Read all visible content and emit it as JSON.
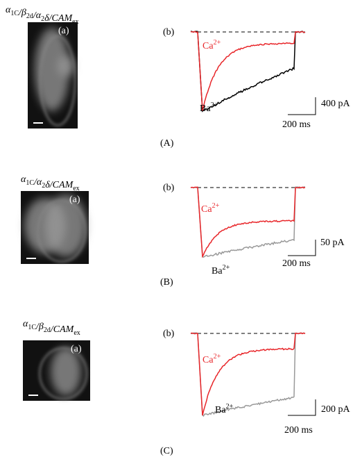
{
  "panels": [
    {
      "construct": [
        {
          "t": "α",
          "sub": "1C"
        },
        {
          "t": "/β",
          "sub": "2d"
        },
        {
          "t": "/α",
          "sub": "2"
        },
        {
          "t": "δ/CAM",
          "sub": "ex"
        }
      ],
      "image_label": "(a)",
      "trace_label": "(b)",
      "ca": {
        "ion": "Ca",
        "charge": "2+"
      },
      "ba": {
        "ion": "Ba",
        "charge": "2+"
      },
      "current_scale": "400 pA",
      "time_scale": "200 ms",
      "panel_label": "(A)"
    },
    {
      "construct": [
        {
          "t": "α",
          "sub": "1C"
        },
        {
          "t": "/α",
          "sub": "2"
        },
        {
          "t": "δ/CAM",
          "sub": "ex"
        }
      ],
      "image_label": "(a)",
      "trace_label": "(b)",
      "ca": {
        "ion": "Ca",
        "charge": "2+"
      },
      "ba": {
        "ion": "Ba",
        "charge": "2+"
      },
      "current_scale": "50 pA",
      "time_scale": "200 ms",
      "panel_label": "(B)"
    },
    {
      "construct": [
        {
          "t": "α",
          "sub": "1C"
        },
        {
          "t": "/β",
          "sub": "2d"
        },
        {
          "t": "/CAM",
          "sub": "ex"
        }
      ],
      "image_label": "(a)",
      "trace_label": "(b)",
      "ca": {
        "ion": "Ca",
        "charge": "2+"
      },
      "ba": {
        "ion": "Ba",
        "charge": "2+"
      },
      "current_scale": "200 pA",
      "time_scale": "200 ms",
      "panel_label": "(C)"
    }
  ]
}
